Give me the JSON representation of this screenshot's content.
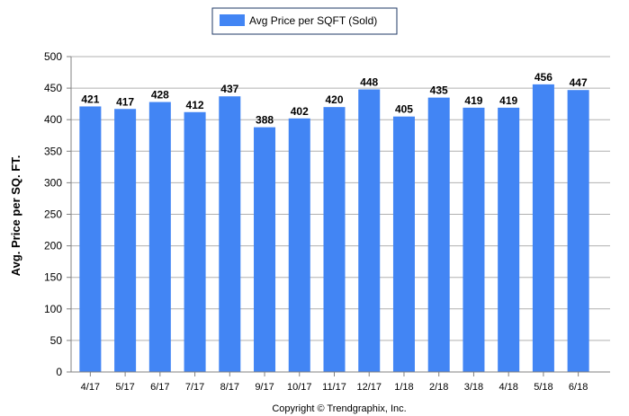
{
  "chart_data": {
    "type": "bar",
    "title": "",
    "xlabel": "",
    "ylabel": "Avg. Price per SQ. FT.",
    "ylim": [
      0,
      500
    ],
    "yticks": [
      0,
      50,
      100,
      150,
      200,
      250,
      300,
      350,
      400,
      450,
      500
    ],
    "grid": true,
    "legend_position": "top-center",
    "categories": [
      "4/17",
      "5/17",
      "6/17",
      "7/17",
      "8/17",
      "9/17",
      "10/17",
      "11/17",
      "12/17",
      "1/18",
      "2/18",
      "3/18",
      "4/18",
      "5/18",
      "6/18"
    ],
    "series": [
      {
        "name": "Avg Price per SQFT (Sold)",
        "color": "#4285f4",
        "values": [
          421,
          417,
          428,
          412,
          437,
          388,
          402,
          420,
          448,
          405,
          435,
          419,
          419,
          456,
          447
        ]
      }
    ],
    "footer": "Copyright © Trendgraphix, Inc."
  }
}
